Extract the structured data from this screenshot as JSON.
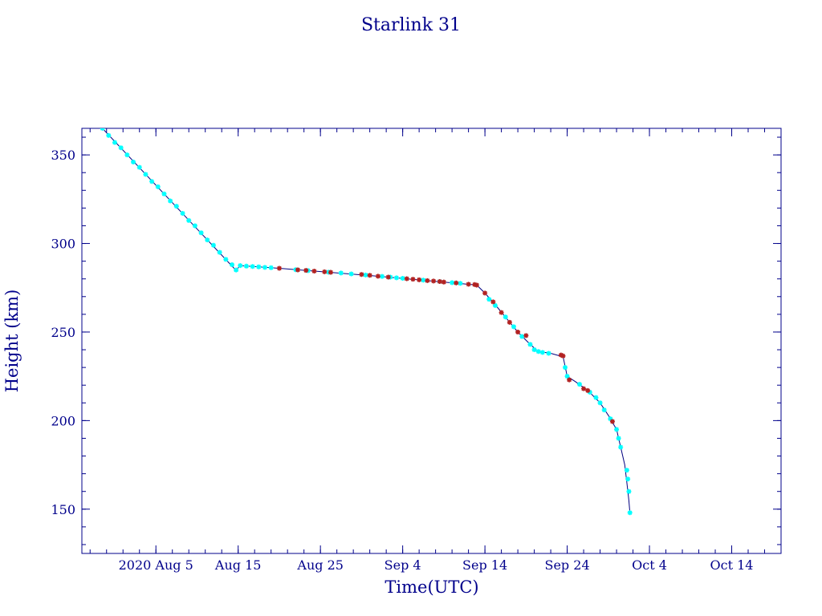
{
  "chart_data": {
    "type": "scatter",
    "title": "Starlink 31",
    "xlabel": "Time(UTC)",
    "ylabel": "Height (km)",
    "x_axis": {
      "type": "date",
      "range": [
        "2020-07-27",
        "2020-10-20"
      ],
      "major_ticks": [
        {
          "date": "2020-08-05",
          "label": "2020 Aug  5"
        },
        {
          "date": "2020-08-15",
          "label": "Aug 15"
        },
        {
          "date": "2020-08-25",
          "label": "Aug 25"
        },
        {
          "date": "2020-09-04",
          "label": "Sep  4"
        },
        {
          "date": "2020-09-14",
          "label": "Sep 14"
        },
        {
          "date": "2020-09-24",
          "label": "Sep 24"
        },
        {
          "date": "2020-10-04",
          "label": "Oct  4"
        },
        {
          "date": "2020-10-14",
          "label": "Oct 14"
        }
      ],
      "minor_tick_step_days": 2
    },
    "y_axis": {
      "range": [
        125,
        365
      ],
      "major_ticks": [
        150,
        200,
        250,
        300,
        350
      ],
      "minor_tick_step": 10
    },
    "grid": false,
    "colors": {
      "text": "#00008b",
      "axes": "#00008b",
      "line": "#000080",
      "points_cyan": "#00ffff",
      "points_red": "#b22222"
    },
    "line_path": [
      [
        "2020-07-29T12:00",
        365
      ],
      [
        "2020-08-14T12:00",
        286
      ],
      [
        "2020-08-14T18:00",
        285
      ],
      [
        "2020-08-15T06:00",
        287.5
      ],
      [
        "2020-08-20T00:00",
        286
      ],
      [
        "2020-09-01T00:00",
        281.5
      ],
      [
        "2020-09-07T00:00",
        279
      ],
      [
        "2020-09-13T00:00",
        276.5
      ],
      [
        "2020-09-14T00:00",
        272
      ],
      [
        "2020-09-15T12:00",
        264
      ],
      [
        "2020-09-18T00:00",
        250
      ],
      [
        "2020-09-19T12:00",
        243
      ],
      [
        "2020-09-20T12:00",
        239
      ],
      [
        "2020-09-22T00:00",
        238
      ],
      [
        "2020-09-23T12:00",
        236
      ],
      [
        "2020-09-24T00:00",
        225
      ],
      [
        "2020-09-25T00:00",
        222
      ],
      [
        "2020-09-26T12:00",
        217
      ],
      [
        "2020-09-28T00:00",
        210
      ],
      [
        "2020-09-29T00:00",
        203
      ],
      [
        "2020-09-30T00:00",
        195
      ],
      [
        "2020-09-30T12:00",
        185
      ],
      [
        "2020-10-01T00:00",
        175
      ],
      [
        "2020-10-01T06:00",
        165
      ],
      [
        "2020-10-01T12:00",
        155
      ],
      [
        "2020-10-01T15:00",
        148
      ]
    ],
    "series": [
      {
        "color": "cyan",
        "points": [
          [
            "2020-07-29T12:00",
            365
          ],
          [
            "2020-07-30T06:00",
            361
          ],
          [
            "2020-07-31T00:00",
            357
          ],
          [
            "2020-07-31T18:00",
            354
          ],
          [
            "2020-08-01T12:00",
            350
          ],
          [
            "2020-08-02T06:00",
            346
          ],
          [
            "2020-08-03T00:00",
            343
          ],
          [
            "2020-08-03T18:00",
            339
          ],
          [
            "2020-08-04T12:00",
            335
          ],
          [
            "2020-08-05T06:00",
            332
          ],
          [
            "2020-08-06T00:00",
            328
          ],
          [
            "2020-08-06T18:00",
            324
          ],
          [
            "2020-08-07T12:00",
            321
          ],
          [
            "2020-08-08T06:00",
            317
          ],
          [
            "2020-08-09T00:00",
            313
          ],
          [
            "2020-08-09T18:00",
            310
          ],
          [
            "2020-08-10T12:00",
            306
          ],
          [
            "2020-08-11T06:00",
            302
          ],
          [
            "2020-08-12T00:00",
            299
          ],
          [
            "2020-08-12T18:00",
            295
          ],
          [
            "2020-08-13T12:00",
            291
          ],
          [
            "2020-08-14T06:00",
            288
          ],
          [
            "2020-08-14T18:00",
            285
          ],
          [
            "2020-08-15T06:00",
            287.5
          ],
          [
            "2020-08-16T00:00",
            287.2
          ],
          [
            "2020-08-16T18:00",
            287
          ],
          [
            "2020-08-17T12:00",
            286.8
          ],
          [
            "2020-08-18T06:00",
            286.5
          ],
          [
            "2020-08-19T00:00",
            286.3
          ],
          [
            "2020-08-22T00:00",
            285.2
          ],
          [
            "2020-08-23T12:00",
            284.7
          ],
          [
            "2020-08-26T00:00",
            283.8
          ],
          [
            "2020-08-27T12:00",
            283.3
          ],
          [
            "2020-08-28T18:00",
            282.8
          ],
          [
            "2020-08-30T12:00",
            282.2
          ],
          [
            "2020-09-01T12:00",
            281.4
          ],
          [
            "2020-09-02T12:00",
            281
          ],
          [
            "2020-09-03T06:00",
            280.6
          ],
          [
            "2020-09-04T00:00",
            280.3
          ],
          [
            "2020-09-06T12:00",
            279.3
          ],
          [
            "2020-09-08T12:00",
            278.5
          ],
          [
            "2020-09-10T00:00",
            277.9
          ],
          [
            "2020-09-11T00:00",
            277.5
          ],
          [
            "2020-09-14T12:00",
            268.5
          ],
          [
            "2020-09-15T06:00",
            265
          ],
          [
            "2020-09-16T12:00",
            258.5
          ],
          [
            "2020-09-17T12:00",
            253
          ],
          [
            "2020-09-18T12:00",
            247.5
          ],
          [
            "2020-09-19T12:00",
            243
          ],
          [
            "2020-09-20T00:00",
            240
          ],
          [
            "2020-09-20T12:00",
            239
          ],
          [
            "2020-09-21T00:00",
            238.5
          ],
          [
            "2020-09-21T18:00",
            238
          ],
          [
            "2020-09-23T18:00",
            230
          ],
          [
            "2020-09-24T00:00",
            225
          ],
          [
            "2020-09-25T12:00",
            220.5
          ],
          [
            "2020-09-26T18:00",
            216
          ],
          [
            "2020-09-27T12:00",
            213
          ],
          [
            "2020-09-28T00:00",
            210
          ],
          [
            "2020-09-28T12:00",
            206
          ],
          [
            "2020-09-29T06:00",
            201
          ],
          [
            "2020-09-30T00:00",
            195
          ],
          [
            "2020-09-30T06:00",
            190
          ],
          [
            "2020-09-30T12:00",
            185
          ],
          [
            "2020-10-01T06:00",
            172
          ],
          [
            "2020-10-01T09:00",
            167
          ],
          [
            "2020-10-01T12:00",
            160
          ],
          [
            "2020-10-01T15:00",
            148
          ]
        ]
      },
      {
        "color": "red",
        "points": [
          [
            "2020-08-20T00:00",
            286
          ],
          [
            "2020-08-22T06:00",
            285.1
          ],
          [
            "2020-08-23T06:00",
            284.8
          ],
          [
            "2020-08-24T06:00",
            284.4
          ],
          [
            "2020-08-25T12:00",
            284
          ],
          [
            "2020-08-26T06:00",
            283.7
          ],
          [
            "2020-08-30T00:00",
            282.5
          ],
          [
            "2020-08-31T00:00",
            282
          ],
          [
            "2020-09-01T00:00",
            281.5
          ],
          [
            "2020-09-02T06:00",
            281
          ],
          [
            "2020-09-04T12:00",
            280.1
          ],
          [
            "2020-09-05T06:00",
            279.8
          ],
          [
            "2020-09-06T00:00",
            279.5
          ],
          [
            "2020-09-07T00:00",
            279
          ],
          [
            "2020-09-07T18:00",
            278.8
          ],
          [
            "2020-09-08T12:00",
            278.5
          ],
          [
            "2020-09-09T00:00",
            278.2
          ],
          [
            "2020-09-10T12:00",
            277.7
          ],
          [
            "2020-09-12T00:00",
            277
          ],
          [
            "2020-09-12T18:00",
            276.8
          ],
          [
            "2020-09-13T00:00",
            276.5
          ],
          [
            "2020-09-14T00:00",
            272
          ],
          [
            "2020-09-15T00:00",
            267
          ],
          [
            "2020-09-16T00:00",
            261
          ],
          [
            "2020-09-17T00:00",
            255.5
          ],
          [
            "2020-09-18T00:00",
            250
          ],
          [
            "2020-09-19T00:00",
            248
          ],
          [
            "2020-09-23T06:00",
            237
          ],
          [
            "2020-09-23T12:00",
            236.5
          ],
          [
            "2020-09-24T06:00",
            223
          ],
          [
            "2020-09-26T00:00",
            218
          ],
          [
            "2020-09-26T12:00",
            217
          ],
          [
            "2020-09-29T12:00",
            199.5
          ]
        ]
      }
    ]
  }
}
